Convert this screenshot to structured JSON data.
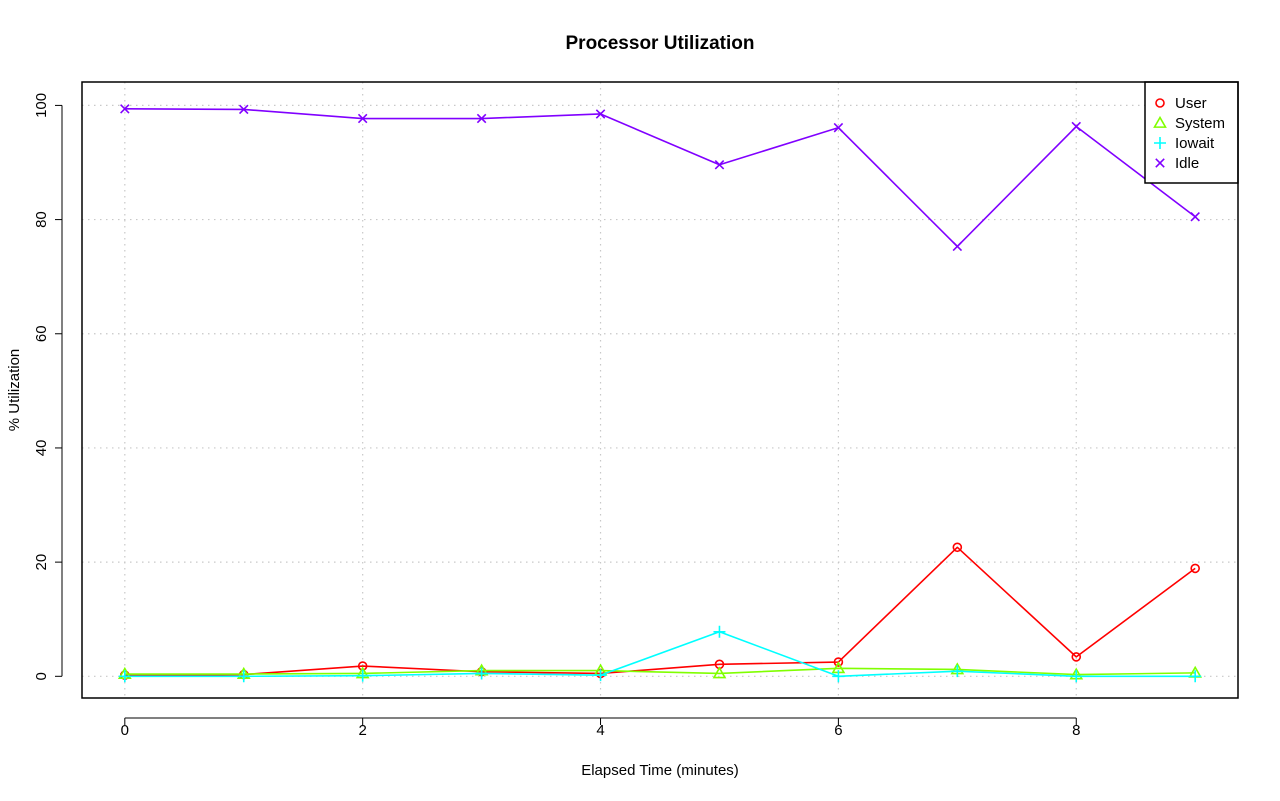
{
  "chart_data": {
    "type": "line",
    "title": "Processor Utilization",
    "xlabel": "Elapsed Time (minutes)",
    "ylabel": "% Utilization",
    "xlim": [
      -0.36,
      9.36
    ],
    "ylim": [
      -3.8,
      104.1
    ],
    "x_ticks": [
      0,
      2,
      4,
      6,
      8
    ],
    "y_ticks": [
      0,
      20,
      40,
      60,
      80,
      100
    ],
    "grid": true,
    "legend_position": "top-right",
    "x": [
      0,
      1,
      2,
      3,
      4,
      5,
      6,
      7,
      8,
      9
    ],
    "series": [
      {
        "name": "User",
        "color": "#ff0000",
        "marker": "circle",
        "values": [
          0.2,
          0.3,
          1.8,
          0.8,
          0.5,
          2.1,
          2.5,
          22.6,
          3.4,
          18.9
        ]
      },
      {
        "name": "System",
        "color": "#80ff00",
        "marker": "triangle",
        "values": [
          0.4,
          0.4,
          0.5,
          1.0,
          1.0,
          0.5,
          1.4,
          1.2,
          0.3,
          0.6
        ]
      },
      {
        "name": "Iowait",
        "color": "#00ffff",
        "marker": "plus",
        "values": [
          0.0,
          0.0,
          0.1,
          0.5,
          0.2,
          7.8,
          0.0,
          0.9,
          0.0,
          0.0
        ]
      },
      {
        "name": "Idle",
        "color": "#8000ff",
        "marker": "cross",
        "values": [
          99.4,
          99.3,
          97.7,
          97.7,
          98.5,
          89.6,
          96.1,
          75.3,
          96.3,
          80.5
        ]
      }
    ]
  }
}
